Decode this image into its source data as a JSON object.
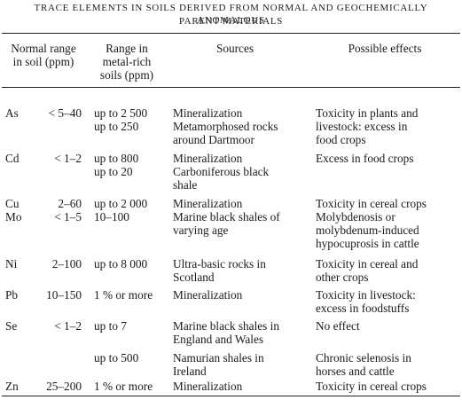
{
  "table": {
    "caption_line1": "TRACE ELEMENTS IN SOILS DERIVED FROM NORMAL AND GEOCHEMICALLY ANOMALOUS",
    "caption_line2": "PARENT MATERIALS",
    "columns": {
      "normal_range": [
        "Normal range",
        "in soil (ppm)"
      ],
      "metal_rich": [
        "Range in",
        "metal-rich",
        "soils (ppm)"
      ],
      "sources": "Sources",
      "effects": "Possible effects"
    },
    "rows": [
      {
        "element": "As",
        "normal": "< 5–40",
        "range": "up to 2 500",
        "source": "Mineralization",
        "effect": "Toxicity in plants and\nlivestock: excess in\nfood crops"
      },
      {
        "element": "",
        "normal": "",
        "range": "up to 250",
        "source": "Metamorphosed rocks\naround Dartmoor",
        "effect": ""
      },
      {
        "element": "Cd",
        "normal": "< 1–2",
        "range": "up to 800",
        "source": "Mineralization",
        "effect": "Excess in food crops"
      },
      {
        "element": "",
        "normal": "",
        "range": "up to 20",
        "source": "Carboniferous black\nshale",
        "effect": ""
      },
      {
        "element": "Cu",
        "normal": "2–60",
        "range": "up to 2 000",
        "source": "Mineralization",
        "effect": "Toxicity in cereal crops"
      },
      {
        "element": "Mo",
        "normal": "< 1–5",
        "range": "10–100",
        "source": "Marine black shales of\nvarying age",
        "effect": "Molybdenosis or\nmolybdenum-induced\nhypocuprosis in cattle"
      },
      {
        "element": "Ni",
        "normal": "2–100",
        "range": "up to 8 000",
        "source": "Ultra-basic rocks in\nScotland",
        "effect": "Toxicity in cereal and\nother crops"
      },
      {
        "element": "Pb",
        "normal": "10–150",
        "range": "1 % or more",
        "source": "Mineralization",
        "effect": "Toxicity in livestock:\nexcess in foodstuffs"
      },
      {
        "element": "Se",
        "normal": "< 1–2",
        "range": "up to 7",
        "source": "Marine black shales in\nEngland and Wales",
        "effect": "No effect"
      },
      {
        "element": "",
        "normal": "",
        "range": "up to 500",
        "source": "Namurian shales in\nIreland",
        "effect": "Chronic selenosis in\nhorses and cattle"
      },
      {
        "element": "Zn",
        "normal": "25–200",
        "range": "1 % or more",
        "source": "Mineralization",
        "effect": "Toxicity in cereal crops"
      }
    ]
  }
}
